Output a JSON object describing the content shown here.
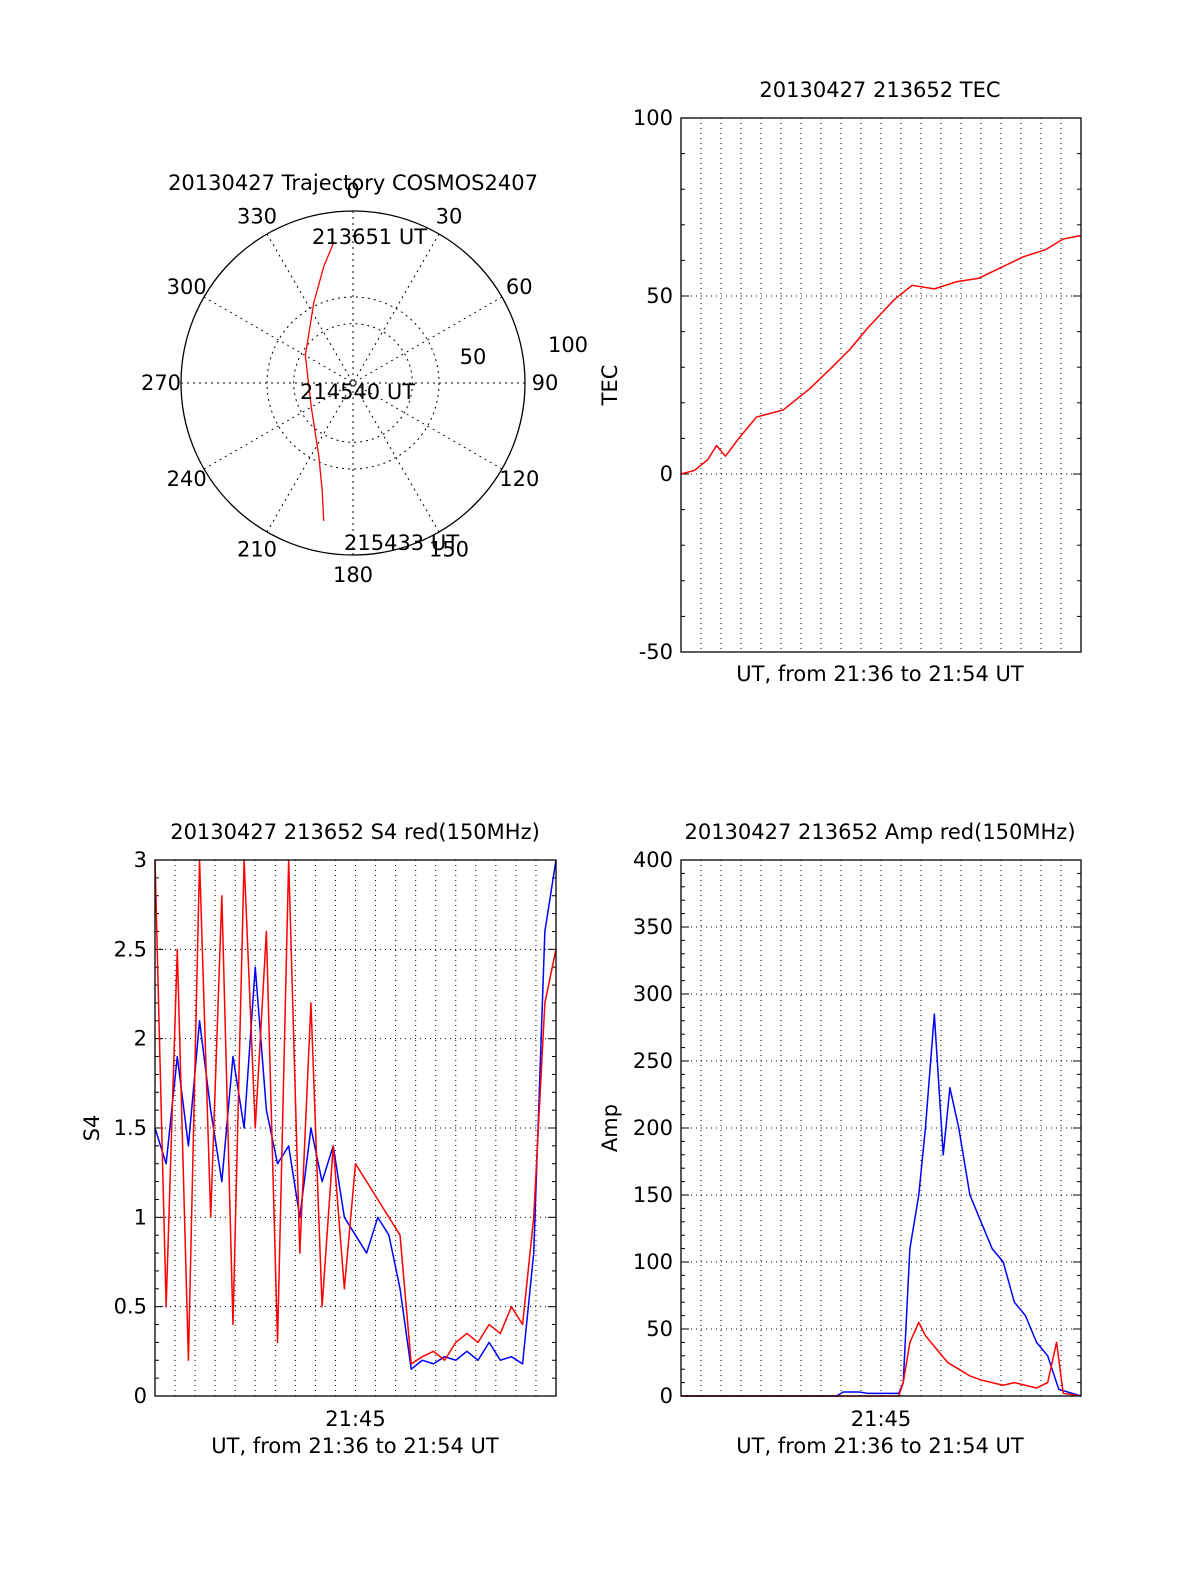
{
  "chart_data": [
    {
      "type": "polar",
      "title": "20130427 Trajectory COSMOS2407",
      "angle_labels": [
        "0",
        "30",
        "60",
        "90",
        "120",
        "150",
        "180",
        "210",
        "240",
        "270",
        "300",
        "330"
      ],
      "radial_labels": [
        "50",
        "100"
      ],
      "elevation_max": 100,
      "series": [
        {
          "color": "#ff0000",
          "points": [
            {
              "az": 352,
              "el": 18
            },
            {
              "az": 346,
              "el": 30
            },
            {
              "az": 334,
              "el": 48
            },
            {
              "az": 300,
              "el": 68
            },
            {
              "az": 240,
              "el": 72
            },
            {
              "az": 205,
              "el": 53
            },
            {
              "az": 196,
              "el": 35
            },
            {
              "az": 192,
              "el": 18
            }
          ]
        }
      ],
      "annotations": [
        {
          "text": "213651 UT",
          "az": 355,
          "el": 18
        },
        {
          "text": "214540 UT",
          "az": 250,
          "el": 96
        },
        {
          "text": "215433 UT",
          "az": 185,
          "el": 15
        }
      ],
      "colors": {
        "trajectory": "#ff0000",
        "grid": "#000000"
      }
    },
    {
      "type": "line",
      "title": "20130427 213652 TEC",
      "xlabel": "UT, from 21:36 to 21:54 UT",
      "ylabel": "TEC",
      "xlim": [
        0,
        18
      ],
      "ylim": [
        -50,
        100
      ],
      "yticks": [
        -50,
        0,
        50,
        100
      ],
      "xtick_labels": [],
      "series": [
        {
          "color": "#ff0000",
          "x": [
            0,
            0.6,
            1.2,
            1.6,
            2.0,
            2.6,
            3.4,
            4.6,
            5.8,
            6.8,
            7.6,
            8.4,
            9.6,
            10.4,
            11.4,
            12.4,
            13.4,
            14.4,
            15.4,
            16.4,
            17.2,
            18
          ],
          "y": [
            0,
            1,
            4,
            8,
            5,
            10,
            16,
            18,
            24,
            30,
            35,
            41,
            49,
            53,
            52,
            54,
            55,
            58,
            61,
            63,
            66,
            67
          ]
        }
      ],
      "grid": true
    },
    {
      "type": "line",
      "title": "20130427 213652 S4 red(150MHz)",
      "xlabel": "UT, from 21:36 to 21:54 UT",
      "ylabel": "S4",
      "xlim": [
        0,
        18
      ],
      "ylim": [
        0,
        3
      ],
      "yticks": [
        0,
        0.5,
        1,
        1.5,
        2,
        2.5,
        3
      ],
      "xtick_labels": [
        {
          "x": 9,
          "label": "21:45"
        }
      ],
      "series": [
        {
          "color": "#0000ff",
          "x": [
            0,
            0.5,
            1,
            1.5,
            2,
            2.5,
            3,
            3.5,
            4,
            4.5,
            5,
            5.5,
            6,
            6.5,
            7,
            7.5,
            8,
            8.5,
            9,
            9.5,
            10,
            10.5,
            11,
            11.5,
            12,
            12.5,
            13,
            13.5,
            14,
            14.5,
            15,
            15.5,
            16,
            16.5,
            17,
            17.5,
            18
          ],
          "y": [
            1.5,
            1.3,
            1.9,
            1.4,
            2.1,
            1.6,
            1.2,
            1.9,
            1.5,
            2.4,
            1.6,
            1.3,
            1.4,
            1.0,
            1.5,
            1.2,
            1.4,
            1.0,
            0.9,
            0.8,
            1.0,
            0.9,
            0.6,
            0.15,
            0.2,
            0.18,
            0.22,
            0.2,
            0.25,
            0.2,
            0.3,
            0.2,
            0.22,
            0.18,
            0.8,
            2.6,
            3.0
          ]
        },
        {
          "color": "#ff0000",
          "x": [
            0,
            0.5,
            1,
            1.5,
            2,
            2.5,
            3,
            3.5,
            4,
            4.5,
            5,
            5.5,
            6,
            6.5,
            7,
            7.5,
            8,
            8.5,
            9,
            9.5,
            10,
            10.5,
            11,
            11.5,
            12,
            12.5,
            13,
            13.5,
            14,
            14.5,
            15,
            15.5,
            16,
            16.5,
            17,
            17.5,
            18
          ],
          "y": [
            3,
            0.5,
            2.5,
            0.2,
            3,
            1.0,
            2.8,
            0.4,
            3,
            1.5,
            2.6,
            0.3,
            3,
            0.8,
            2.2,
            0.5,
            1.4,
            0.6,
            1.3,
            1.2,
            1.1,
            1.0,
            0.9,
            0.18,
            0.22,
            0.25,
            0.2,
            0.3,
            0.35,
            0.3,
            0.4,
            0.35,
            0.5,
            0.4,
            1.0,
            2.2,
            2.5
          ]
        }
      ],
      "grid": true
    },
    {
      "type": "line",
      "title": "20130427 213652 Amp red(150MHz)",
      "xlabel": "UT, from 21:36 to 21:54 UT",
      "ylabel": "Amp",
      "xlim": [
        0,
        18
      ],
      "ylim": [
        0,
        400
      ],
      "yticks": [
        0,
        50,
        100,
        150,
        200,
        250,
        300,
        350,
        400
      ],
      "xtick_labels": [
        {
          "x": 9,
          "label": "21:45"
        }
      ],
      "series": [
        {
          "color": "#0000ff",
          "x": [
            0,
            4,
            7,
            7.3,
            8,
            8.4,
            9.8,
            10,
            10.3,
            10.7,
            11,
            11.4,
            11.8,
            12.1,
            12.5,
            13,
            13.5,
            14,
            14.5,
            15,
            15.5,
            16,
            16.5,
            17,
            18
          ],
          "y": [
            0,
            0,
            0,
            3,
            3,
            2,
            2,
            10,
            110,
            150,
            200,
            285,
            180,
            230,
            200,
            150,
            130,
            110,
            100,
            70,
            60,
            40,
            30,
            5,
            0
          ]
        },
        {
          "color": "#ff0000",
          "x": [
            0,
            9.8,
            10,
            10.3,
            10.7,
            11,
            11.5,
            12,
            12.5,
            13,
            13.5,
            14,
            14.5,
            15,
            15.5,
            16,
            16.5,
            16.9,
            17.2,
            18
          ],
          "y": [
            0,
            0,
            10,
            40,
            55,
            45,
            35,
            25,
            20,
            15,
            12,
            10,
            8,
            10,
            8,
            6,
            10,
            40,
            2,
            0
          ]
        }
      ],
      "grid": true
    }
  ]
}
